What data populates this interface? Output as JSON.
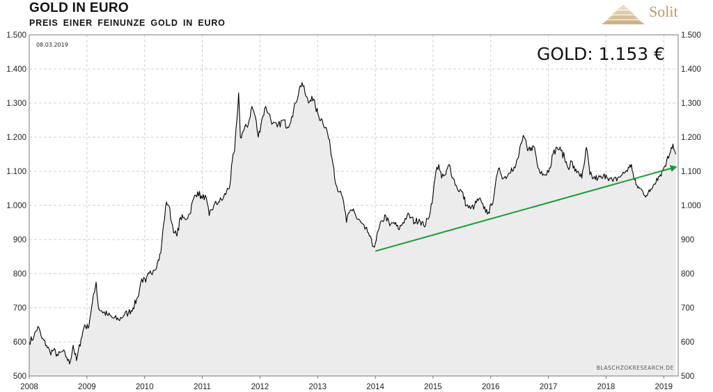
{
  "header": {
    "title": "GOLD IN EURO",
    "subtitle": "PREIS EINER FEINUNZE GOLD IN EURO"
  },
  "logo": {
    "text": "Solit",
    "color": "#b89a66",
    "icon": "pyramid-icon"
  },
  "chart_data": {
    "type": "area",
    "title": "GOLD IN EURO",
    "subtitle": "PREIS EINER FEINUNZE GOLD IN EURO",
    "date_label": "08.03.2019",
    "value_label": "GOLD: 1.153 €",
    "source": "BLASCHZOKRESEARCH.DE",
    "grid": true,
    "colors": {
      "line": "#000000",
      "fill": "#ececec",
      "trend": "#1a9a3c"
    },
    "x_ticks": [
      "2008",
      "2009",
      "2010",
      "2011",
      "2012",
      "2013",
      "2014",
      "2015",
      "2016",
      "2017",
      "2018",
      "2019"
    ],
    "xlim": [
      2008.0,
      2019.25
    ],
    "ylim": [
      500,
      1500
    ],
    "y_ticks": [
      "500",
      "600",
      "700",
      "800",
      "900",
      "1.000",
      "1.100",
      "1.200",
      "1.300",
      "1.400",
      "1.500"
    ],
    "series": [
      {
        "values": [
          [
            2008.0,
            600
          ],
          [
            2008.08,
            615
          ],
          [
            2008.15,
            645
          ],
          [
            2008.22,
            610
          ],
          [
            2008.3,
            590
          ],
          [
            2008.36,
            570
          ],
          [
            2008.42,
            575
          ],
          [
            2008.5,
            560
          ],
          [
            2008.58,
            572
          ],
          [
            2008.65,
            555
          ],
          [
            2008.7,
            535
          ],
          [
            2008.76,
            590
          ],
          [
            2008.82,
            545
          ],
          [
            2008.9,
            610
          ],
          [
            2008.96,
            650
          ],
          [
            2009.02,
            640
          ],
          [
            2009.08,
            700
          ],
          [
            2009.13,
            745
          ],
          [
            2009.16,
            775
          ],
          [
            2009.2,
            700
          ],
          [
            2009.26,
            690
          ],
          [
            2009.35,
            680
          ],
          [
            2009.45,
            670
          ],
          [
            2009.55,
            665
          ],
          [
            2009.65,
            680
          ],
          [
            2009.72,
            685
          ],
          [
            2009.8,
            700
          ],
          [
            2009.88,
            730
          ],
          [
            2009.95,
            785
          ],
          [
            2010.02,
            775
          ],
          [
            2010.08,
            800
          ],
          [
            2010.15,
            810
          ],
          [
            2010.22,
            830
          ],
          [
            2010.28,
            860
          ],
          [
            2010.33,
            945
          ],
          [
            2010.38,
            1010
          ],
          [
            2010.42,
            1000
          ],
          [
            2010.47,
            950
          ],
          [
            2010.52,
            920
          ],
          [
            2010.56,
            910
          ],
          [
            2010.62,
            965
          ],
          [
            2010.7,
            960
          ],
          [
            2010.78,
            975
          ],
          [
            2010.85,
            1020
          ],
          [
            2010.92,
            1040
          ],
          [
            2011.0,
            1020
          ],
          [
            2011.05,
            1030
          ],
          [
            2011.12,
            970
          ],
          [
            2011.2,
            1000
          ],
          [
            2011.28,
            1010
          ],
          [
            2011.36,
            1020
          ],
          [
            2011.42,
            1040
          ],
          [
            2011.48,
            1060
          ],
          [
            2011.52,
            1130
          ],
          [
            2011.56,
            1160
          ],
          [
            2011.6,
            1250
          ],
          [
            2011.63,
            1330
          ],
          [
            2011.66,
            1200
          ],
          [
            2011.72,
            1220
          ],
          [
            2011.8,
            1240
          ],
          [
            2011.86,
            1290
          ],
          [
            2011.92,
            1260
          ],
          [
            2011.97,
            1200
          ],
          [
            2012.03,
            1250
          ],
          [
            2012.1,
            1290
          ],
          [
            2012.15,
            1270
          ],
          [
            2012.22,
            1240
          ],
          [
            2012.3,
            1230
          ],
          [
            2012.4,
            1250
          ],
          [
            2012.48,
            1230
          ],
          [
            2012.55,
            1260
          ],
          [
            2012.62,
            1300
          ],
          [
            2012.68,
            1340
          ],
          [
            2012.73,
            1360
          ],
          [
            2012.78,
            1330
          ],
          [
            2012.84,
            1300
          ],
          [
            2012.9,
            1320
          ],
          [
            2012.96,
            1290
          ],
          [
            2013.02,
            1260
          ],
          [
            2013.08,
            1250
          ],
          [
            2013.16,
            1220
          ],
          [
            2013.22,
            1170
          ],
          [
            2013.28,
            1110
          ],
          [
            2013.32,
            1060
          ],
          [
            2013.38,
            1040
          ],
          [
            2013.45,
            1010
          ],
          [
            2013.5,
            950
          ],
          [
            2013.55,
            980
          ],
          [
            2013.62,
            990
          ],
          [
            2013.68,
            960
          ],
          [
            2013.75,
            950
          ],
          [
            2013.82,
            930
          ],
          [
            2013.88,
            920
          ],
          [
            2013.95,
            880
          ],
          [
            2014.0,
            890
          ],
          [
            2014.06,
            930
          ],
          [
            2014.12,
            955
          ],
          [
            2014.18,
            970
          ],
          [
            2014.25,
            940
          ],
          [
            2014.32,
            950
          ],
          [
            2014.4,
            930
          ],
          [
            2014.48,
            950
          ],
          [
            2014.55,
            970
          ],
          [
            2014.62,
            965
          ],
          [
            2014.68,
            950
          ],
          [
            2014.76,
            960
          ],
          [
            2014.84,
            940
          ],
          [
            2014.92,
            960
          ],
          [
            2015.0,
            1030
          ],
          [
            2015.05,
            1100
          ],
          [
            2015.1,
            1120
          ],
          [
            2015.15,
            1080
          ],
          [
            2015.22,
            1090
          ],
          [
            2015.28,
            1120
          ],
          [
            2015.35,
            1080
          ],
          [
            2015.42,
            1050
          ],
          [
            2015.5,
            1040
          ],
          [
            2015.58,
            1000
          ],
          [
            2015.65,
            990
          ],
          [
            2015.72,
            1000
          ],
          [
            2015.8,
            1020
          ],
          [
            2015.88,
            990
          ],
          [
            2015.96,
            980
          ],
          [
            2016.02,
            1000
          ],
          [
            2016.08,
            1060
          ],
          [
            2016.15,
            1110
          ],
          [
            2016.22,
            1080
          ],
          [
            2016.3,
            1090
          ],
          [
            2016.36,
            1110
          ],
          [
            2016.42,
            1110
          ],
          [
            2016.48,
            1140
          ],
          [
            2016.52,
            1180
          ],
          [
            2016.58,
            1200
          ],
          [
            2016.64,
            1160
          ],
          [
            2016.7,
            1170
          ],
          [
            2016.76,
            1170
          ],
          [
            2016.82,
            1110
          ],
          [
            2016.88,
            1100
          ],
          [
            2016.95,
            1090
          ],
          [
            2017.02,
            1110
          ],
          [
            2017.08,
            1150
          ],
          [
            2017.15,
            1170
          ],
          [
            2017.22,
            1160
          ],
          [
            2017.28,
            1140
          ],
          [
            2017.34,
            1110
          ],
          [
            2017.4,
            1130
          ],
          [
            2017.46,
            1100
          ],
          [
            2017.52,
            1100
          ],
          [
            2017.58,
            1080
          ],
          [
            2017.62,
            1120
          ],
          [
            2017.66,
            1170
          ],
          [
            2017.72,
            1090
          ],
          [
            2017.78,
            1080
          ],
          [
            2017.86,
            1080
          ],
          [
            2017.94,
            1080
          ],
          [
            2018.0,
            1090
          ],
          [
            2018.06,
            1080
          ],
          [
            2018.12,
            1070
          ],
          [
            2018.2,
            1080
          ],
          [
            2018.28,
            1090
          ],
          [
            2018.34,
            1100
          ],
          [
            2018.4,
            1110
          ],
          [
            2018.44,
            1120
          ],
          [
            2018.48,
            1080
          ],
          [
            2018.52,
            1060
          ],
          [
            2018.58,
            1050
          ],
          [
            2018.64,
            1040
          ],
          [
            2018.7,
            1030
          ],
          [
            2018.76,
            1040
          ],
          [
            2018.82,
            1060
          ],
          [
            2018.88,
            1080
          ],
          [
            2018.94,
            1090
          ],
          [
            2019.0,
            1110
          ],
          [
            2019.05,
            1130
          ],
          [
            2019.1,
            1150
          ],
          [
            2019.13,
            1170
          ],
          [
            2019.16,
            1180
          ],
          [
            2019.19,
            1160
          ],
          [
            2019.21,
            1150
          ]
        ]
      }
    ],
    "trend_arrow": {
      "from": [
        2014.0,
        866
      ],
      "to": [
        2019.2,
        1112
      ]
    }
  }
}
